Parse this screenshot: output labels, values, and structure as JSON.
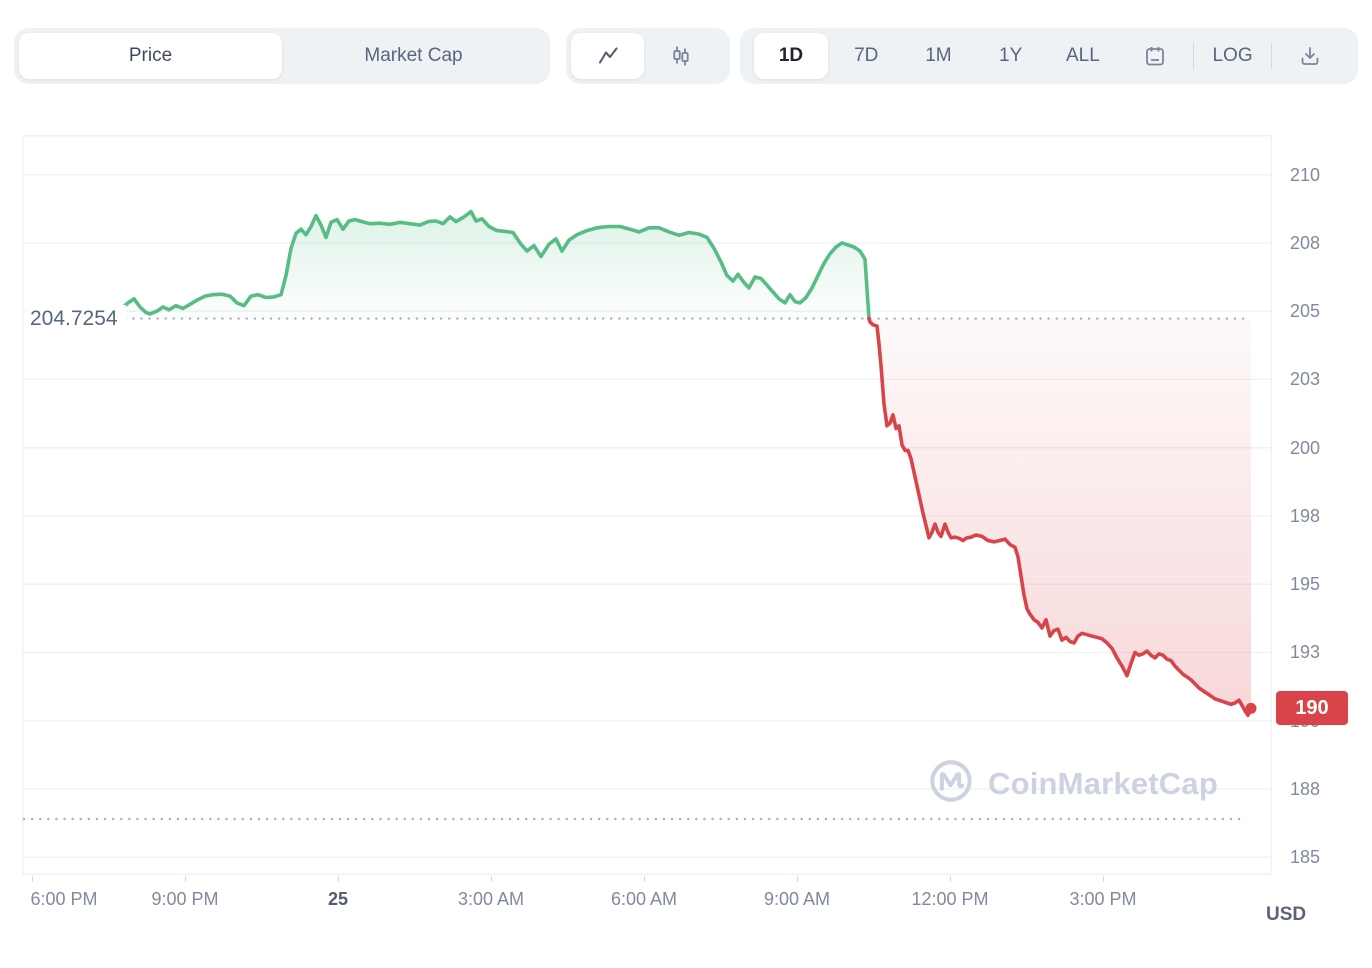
{
  "toolbar": {
    "metric_toggle": {
      "options": [
        "Price",
        "Market Cap"
      ],
      "selected": "Price"
    },
    "chart_type_toggle": {
      "options": [
        "line",
        "candlestick"
      ],
      "selected": "line"
    },
    "range_buttons": [
      "1D",
      "7D",
      "1M",
      "1Y",
      "ALL"
    ],
    "selected_range": "1D",
    "log_label": "LOG"
  },
  "watermark": {
    "text": "CoinMarketCap"
  },
  "chart_data": {
    "type": "area",
    "unit_label": "USD",
    "grid": true,
    "legend": false,
    "colors": {
      "up": "#57bd84",
      "down": "#d9444a",
      "badge": "#d9444a"
    },
    "baseline": {
      "value": 204.7254,
      "label": "204.7254"
    },
    "secondary_dotted_line_value": 186.4,
    "last_price": 190.45,
    "last_price_badge_label": "190",
    "y_axis": {
      "min": 184.35,
      "max": 211.45,
      "ticks": [
        {
          "v": 210,
          "label": "210"
        },
        {
          "v": 207.5,
          "label": "208"
        },
        {
          "v": 205,
          "label": "205"
        },
        {
          "v": 202.5,
          "label": "203"
        },
        {
          "v": 200,
          "label": "200"
        },
        {
          "v": 197.5,
          "label": "198"
        },
        {
          "v": 195,
          "label": "195"
        },
        {
          "v": 192.5,
          "label": "193"
        },
        {
          "v": 190,
          "label": "190"
        },
        {
          "v": 187.5,
          "label": "188"
        },
        {
          "v": 185,
          "label": "185"
        }
      ]
    },
    "x_axis": {
      "ticks": [
        {
          "f": 0.008,
          "label": "6:00 PM"
        },
        {
          "f": 0.1304,
          "label": "9:00 PM"
        },
        {
          "f": 0.2528,
          "label": "25",
          "bold": true
        },
        {
          "f": 0.3752,
          "label": "3:00 AM"
        },
        {
          "f": 0.4976,
          "label": "6:00 AM"
        },
        {
          "f": 0.62,
          "label": "9:00 AM"
        },
        {
          "f": 0.7424,
          "label": "12:00 PM"
        },
        {
          "f": 0.8648,
          "label": "3:00 PM"
        }
      ]
    },
    "series": {
      "up_points": [
        [
          8,
          204.78
        ],
        [
          20,
          204.85
        ],
        [
          34,
          204.8
        ],
        [
          48,
          204.9
        ],
        [
          62,
          204.85
        ],
        [
          76,
          204.95
        ],
        [
          88,
          204.9
        ],
        [
          98,
          205.05
        ],
        [
          106,
          205.3
        ],
        [
          112,
          205.45
        ],
        [
          118,
          205.15
        ],
        [
          124,
          204.95
        ],
        [
          128,
          204.9
        ],
        [
          135,
          205.0
        ],
        [
          141,
          205.15
        ],
        [
          147,
          205.05
        ],
        [
          154,
          205.2
        ],
        [
          161,
          205.1
        ],
        [
          168,
          205.25
        ],
        [
          175,
          205.4
        ],
        [
          183,
          205.55
        ],
        [
          191,
          205.6
        ],
        [
          200,
          205.62
        ],
        [
          208,
          205.55
        ],
        [
          215,
          205.3
        ],
        [
          222,
          205.2
        ],
        [
          229,
          205.55
        ],
        [
          236,
          205.6
        ],
        [
          244,
          205.5
        ],
        [
          252,
          205.52
        ],
        [
          259,
          205.6
        ],
        [
          264,
          206.3
        ],
        [
          269,
          207.3
        ],
        [
          274,
          207.85
        ],
        [
          279,
          208.0
        ],
        [
          284,
          207.8
        ],
        [
          289,
          208.1
        ],
        [
          294,
          208.5
        ],
        [
          299,
          208.15
        ],
        [
          304,
          207.7
        ],
        [
          309,
          208.25
        ],
        [
          315,
          208.35
        ],
        [
          321,
          208.0
        ],
        [
          327,
          208.3
        ],
        [
          333,
          208.35
        ],
        [
          340,
          208.28
        ],
        [
          348,
          208.2
        ],
        [
          358,
          208.22
        ],
        [
          368,
          208.18
        ],
        [
          378,
          208.25
        ],
        [
          388,
          208.2
        ],
        [
          398,
          208.15
        ],
        [
          406,
          208.28
        ],
        [
          414,
          208.3
        ],
        [
          421,
          208.2
        ],
        [
          428,
          208.45
        ],
        [
          434,
          208.28
        ],
        [
          442,
          208.45
        ],
        [
          449,
          208.65
        ],
        [
          454,
          208.3
        ],
        [
          460,
          208.38
        ],
        [
          467,
          208.1
        ],
        [
          475,
          207.95
        ],
        [
          483,
          207.92
        ],
        [
          491,
          207.88
        ],
        [
          498,
          207.5
        ],
        [
          505,
          207.2
        ],
        [
          512,
          207.4
        ],
        [
          519,
          207.0
        ],
        [
          527,
          207.45
        ],
        [
          534,
          207.65
        ],
        [
          540,
          207.2
        ],
        [
          547,
          207.6
        ],
        [
          555,
          207.8
        ],
        [
          565,
          207.95
        ],
        [
          575,
          208.05
        ],
        [
          586,
          208.1
        ],
        [
          598,
          208.1
        ],
        [
          608,
          208.0
        ],
        [
          617,
          207.9
        ],
        [
          627,
          208.05
        ],
        [
          637,
          208.05
        ],
        [
          647,
          207.9
        ],
        [
          657,
          207.78
        ],
        [
          667,
          207.88
        ],
        [
          677,
          207.82
        ],
        [
          685,
          207.7
        ],
        [
          692,
          207.3
        ],
        [
          699,
          206.8
        ],
        [
          705,
          206.3
        ],
        [
          711,
          206.1
        ],
        [
          716,
          206.35
        ],
        [
          722,
          206.05
        ],
        [
          727,
          205.85
        ],
        [
          733,
          206.25
        ],
        [
          739,
          206.2
        ],
        [
          745,
          205.95
        ],
        [
          751,
          205.7
        ],
        [
          757,
          205.45
        ],
        [
          763,
          205.3
        ],
        [
          768,
          205.6
        ],
        [
          773,
          205.35
        ],
        [
          778,
          205.3
        ],
        [
          784,
          205.5
        ],
        [
          790,
          205.85
        ],
        [
          796,
          206.3
        ],
        [
          802,
          206.75
        ],
        [
          808,
          207.1
        ],
        [
          814,
          207.35
        ],
        [
          820,
          207.5
        ],
        [
          826,
          207.42
        ],
        [
          832,
          207.35
        ],
        [
          838,
          207.2
        ],
        [
          843,
          206.9
        ],
        [
          845,
          205.8
        ],
        [
          847,
          204.7254
        ]
      ],
      "down_points": [
        [
          847,
          204.7254
        ],
        [
          848,
          204.6
        ],
        [
          851,
          204.5
        ],
        [
          855,
          204.45
        ],
        [
          857,
          203.8
        ],
        [
          859,
          203.0
        ],
        [
          862,
          201.6
        ],
        [
          865,
          200.8
        ],
        [
          868,
          200.9
        ],
        [
          871,
          201.2
        ],
        [
          874,
          200.7
        ],
        [
          877,
          200.8
        ],
        [
          880,
          200.1
        ],
        [
          883,
          199.9
        ],
        [
          886,
          199.9
        ],
        [
          889,
          199.6
        ],
        [
          892,
          199.1
        ],
        [
          895,
          198.6
        ],
        [
          898,
          198.1
        ],
        [
          901,
          197.6
        ],
        [
          904,
          197.15
        ],
        [
          907,
          196.7
        ],
        [
          910,
          196.9
        ],
        [
          913,
          197.2
        ],
        [
          916,
          196.9
        ],
        [
          919,
          196.75
        ],
        [
          923,
          197.2
        ],
        [
          926,
          196.9
        ],
        [
          929,
          196.7
        ],
        [
          933,
          196.72
        ],
        [
          937,
          196.68
        ],
        [
          941,
          196.6
        ],
        [
          945,
          196.7
        ],
        [
          949,
          196.72
        ],
        [
          954,
          196.8
        ],
        [
          960,
          196.75
        ],
        [
          966,
          196.6
        ],
        [
          972,
          196.55
        ],
        [
          978,
          196.6
        ],
        [
          983,
          196.65
        ],
        [
          988,
          196.45
        ],
        [
          993,
          196.35
        ],
        [
          996,
          196.0
        ],
        [
          999,
          195.3
        ],
        [
          1002,
          194.6
        ],
        [
          1005,
          194.1
        ],
        [
          1008,
          193.9
        ],
        [
          1012,
          193.7
        ],
        [
          1016,
          193.6
        ],
        [
          1020,
          193.4
        ],
        [
          1024,
          193.7
        ],
        [
          1028,
          193.1
        ],
        [
          1032,
          193.3
        ],
        [
          1036,
          193.35
        ],
        [
          1040,
          192.95
        ],
        [
          1044,
          193.05
        ],
        [
          1048,
          192.9
        ],
        [
          1052,
          192.85
        ],
        [
          1056,
          193.1
        ],
        [
          1060,
          193.2
        ],
        [
          1065,
          193.15
        ],
        [
          1070,
          193.1
        ],
        [
          1075,
          193.05
        ],
        [
          1080,
          193.0
        ],
        [
          1085,
          192.85
        ],
        [
          1090,
          192.65
        ],
        [
          1095,
          192.3
        ],
        [
          1100,
          192.0
        ],
        [
          1105,
          191.65
        ],
        [
          1109,
          192.1
        ],
        [
          1113,
          192.5
        ],
        [
          1117,
          192.4
        ],
        [
          1121,
          192.45
        ],
        [
          1125,
          192.55
        ],
        [
          1129,
          192.4
        ],
        [
          1133,
          192.3
        ],
        [
          1137,
          192.45
        ],
        [
          1141,
          192.4
        ],
        [
          1145,
          192.25
        ],
        [
          1149,
          192.2
        ],
        [
          1153,
          192.0
        ],
        [
          1157,
          191.85
        ],
        [
          1161,
          191.7
        ],
        [
          1165,
          191.6
        ],
        [
          1169,
          191.5
        ],
        [
          1173,
          191.35
        ],
        [
          1177,
          191.2
        ],
        [
          1181,
          191.1
        ],
        [
          1185,
          191.0
        ],
        [
          1189,
          190.9
        ],
        [
          1193,
          190.8
        ],
        [
          1197,
          190.75
        ],
        [
          1201,
          190.7
        ],
        [
          1205,
          190.65
        ],
        [
          1209,
          190.6
        ],
        [
          1213,
          190.65
        ],
        [
          1217,
          190.75
        ],
        [
          1221,
          190.5
        ],
        [
          1224,
          190.3
        ],
        [
          1226,
          190.2
        ],
        [
          1229,
          190.45
        ]
      ]
    }
  }
}
